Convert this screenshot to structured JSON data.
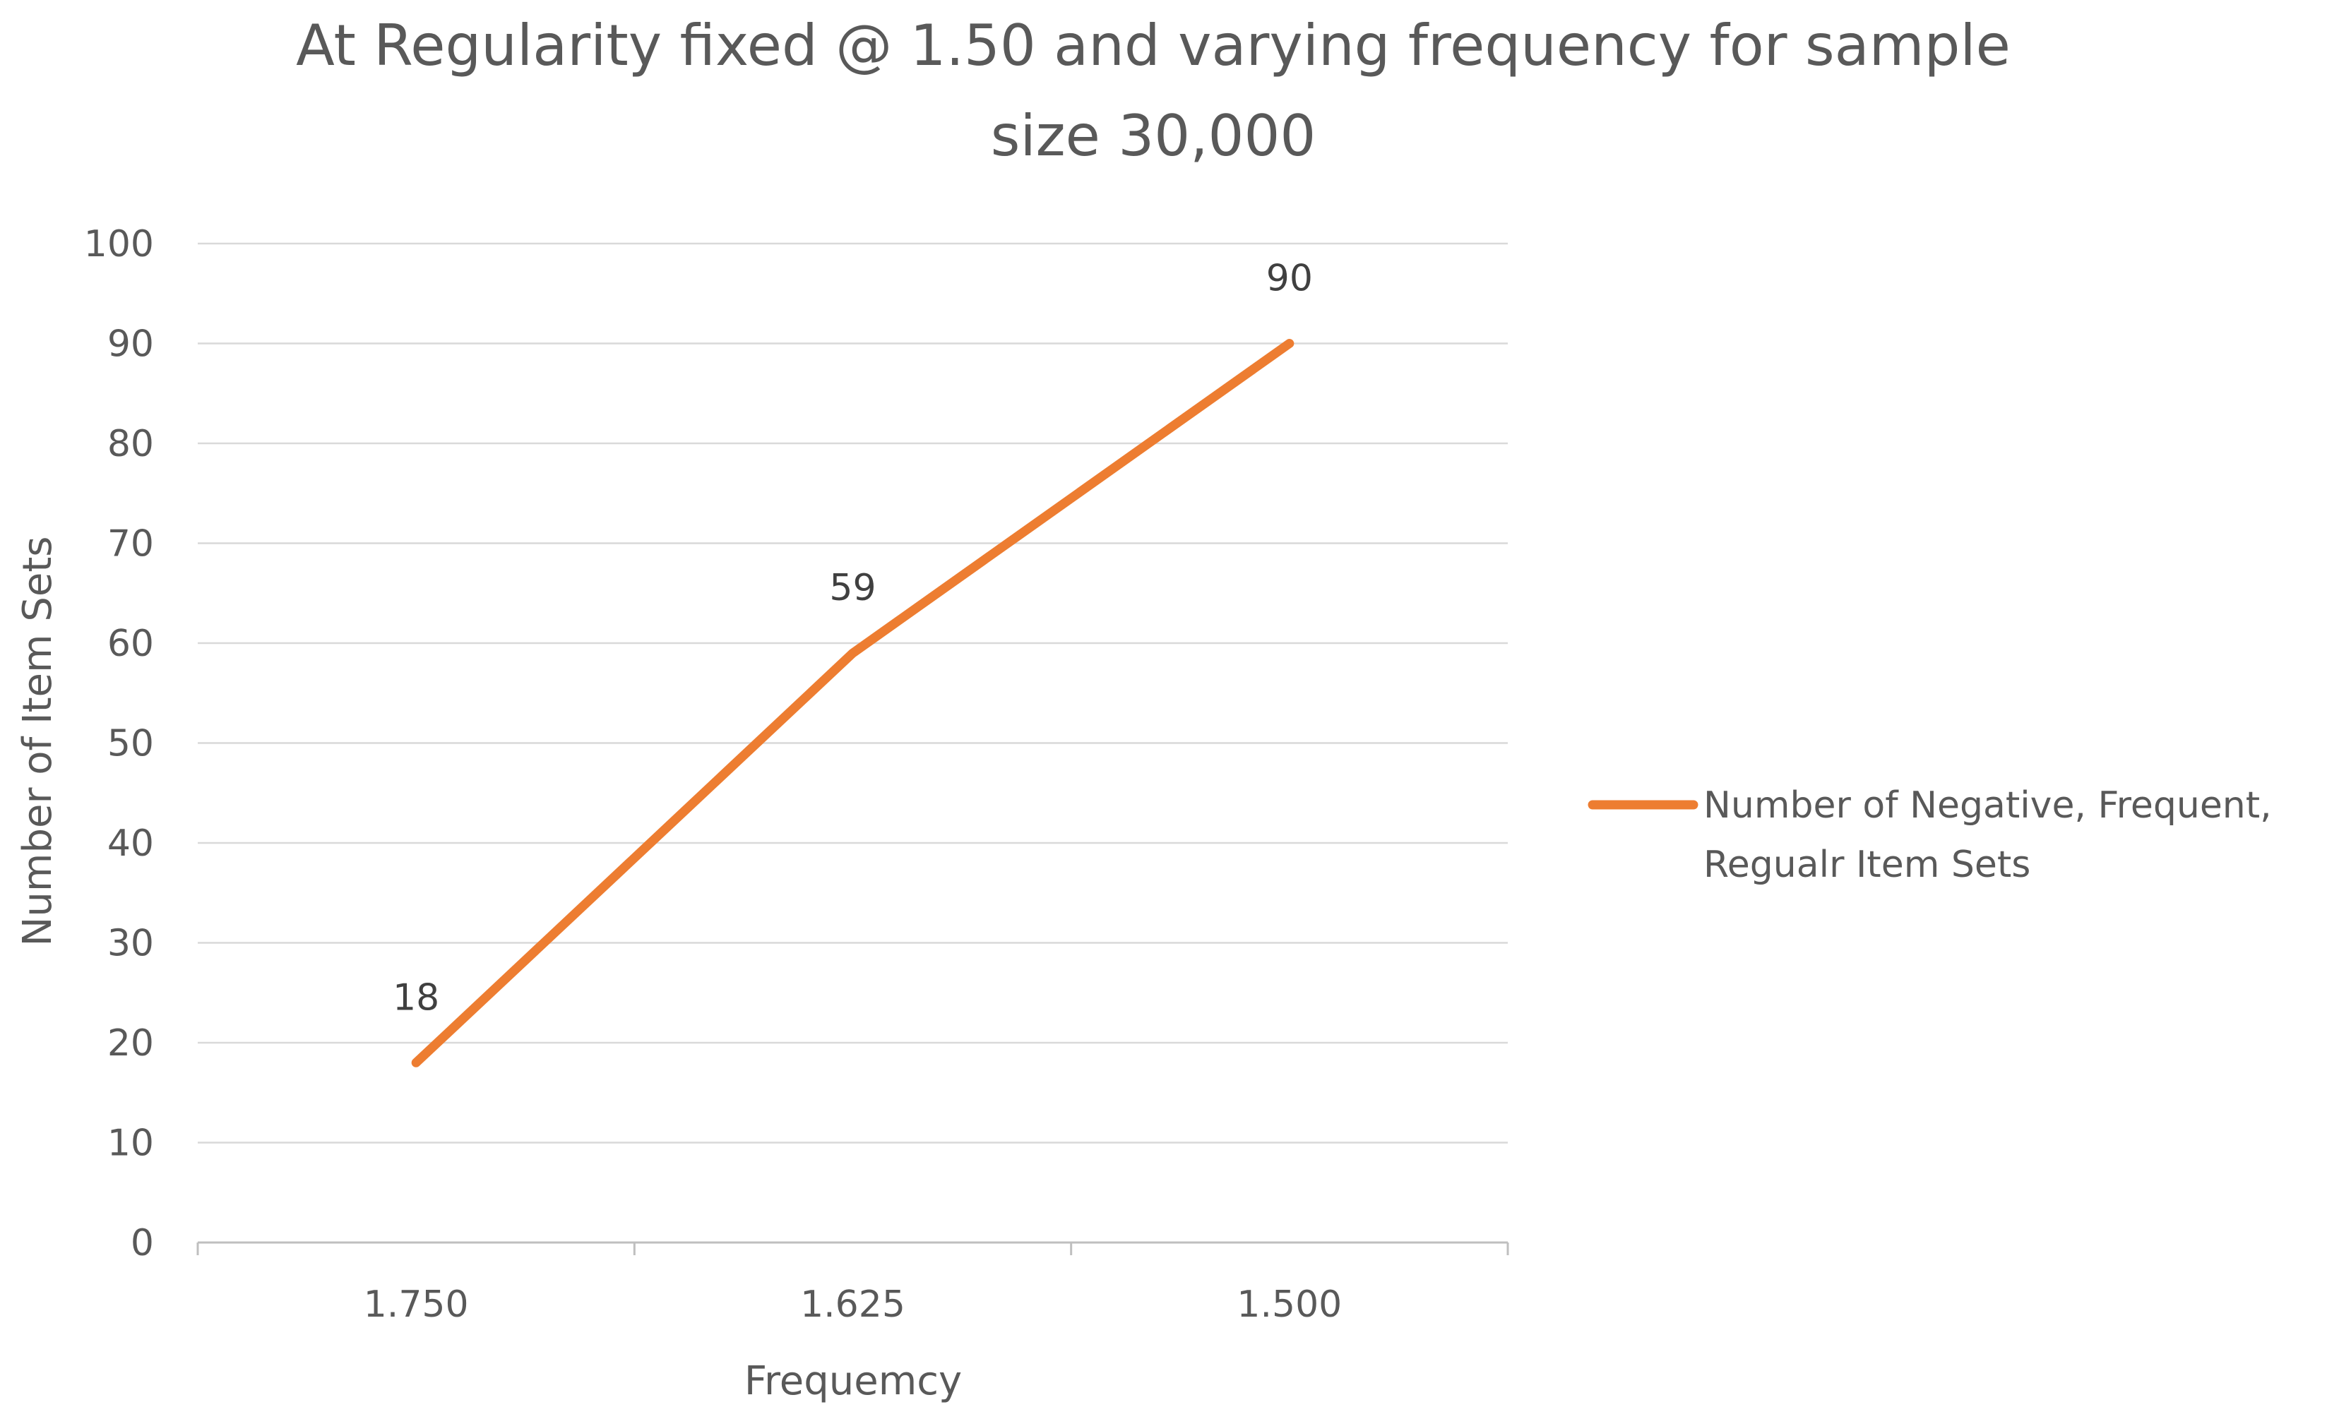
{
  "chart_data": {
    "type": "line",
    "title_lines": [
      "At Regularity fixed @ 1.50 and varying frequency for sample",
      "size 30,000"
    ],
    "xlabel": "Frequemcy",
    "ylabel": "Number of Item Sets",
    "categories": [
      "1.750",
      "1.625",
      "1.500"
    ],
    "yticks": [
      "0",
      "10",
      "20",
      "30",
      "40",
      "50",
      "60",
      "70",
      "80",
      "90",
      "100"
    ],
    "ylim": [
      0,
      100
    ],
    "series": [
      {
        "name_lines": [
          "Number of  Negative, Frequent,",
          "Regualr Item Sets"
        ],
        "values": [
          18,
          59,
          90
        ],
        "color": "#ED7D31"
      }
    ],
    "grid": true,
    "legend_position": "right"
  }
}
